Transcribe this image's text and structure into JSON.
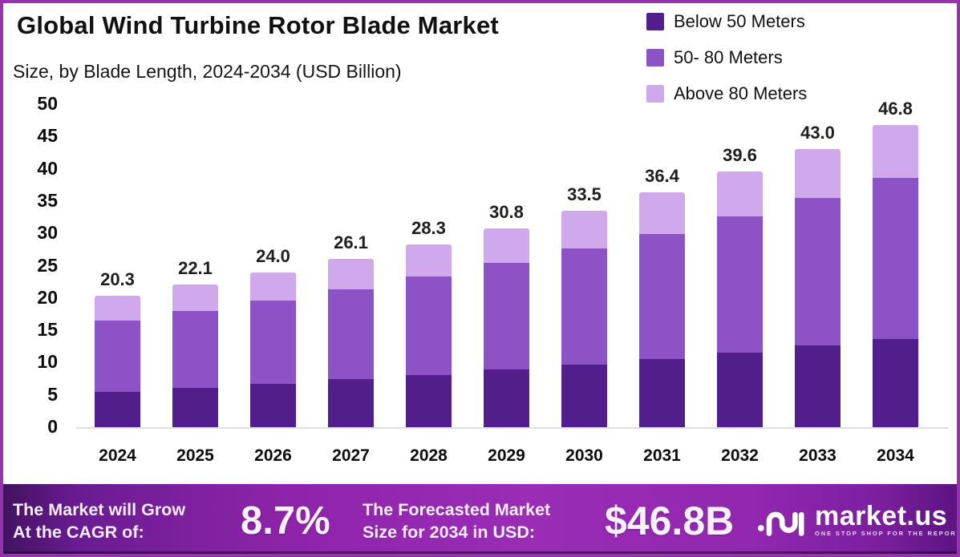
{
  "page": {
    "border_color": "#9632AA",
    "background": "#FFFFFF"
  },
  "header": {
    "title": "Global Wind Turbine Rotor Blade Market",
    "subtitle": "Size, by Blade Length, 2024-2034 (USD Billion)"
  },
  "legend": [
    {
      "label": "Below 50 Meters",
      "color": "#521E8C"
    },
    {
      "label": "50- 80 Meters",
      "color": "#8C52C6"
    },
    {
      "label": "Above 80 Meters",
      "color": "#CFA9EC"
    }
  ],
  "chart_data": {
    "type": "bar",
    "subtype": "stacked-vertical",
    "title": "Global Wind Turbine Rotor Blade Market Size, by Blade Length, 2024-2034 (USD Billion)",
    "categories": [
      "2024",
      "2025",
      "2026",
      "2027",
      "2028",
      "2029",
      "2030",
      "2031",
      "2032",
      "2033",
      "2034"
    ],
    "series": [
      {
        "name": "Below 50 Meters",
        "color": "#521E8C",
        "values": [
          5.5,
          6.1,
          6.7,
          7.4,
          8.1,
          8.9,
          9.7,
          10.6,
          11.5,
          12.6,
          13.7
        ]
      },
      {
        "name": "50- 80 Meters",
        "color": "#8C52C6",
        "values": [
          11.0,
          11.9,
          12.9,
          14.0,
          15.2,
          16.5,
          18.0,
          19.3,
          21.1,
          22.9,
          24.9
        ]
      },
      {
        "name": "Above 80 Meters",
        "color": "#CFA9EC",
        "values": [
          3.8,
          4.1,
          4.4,
          4.7,
          5.0,
          5.4,
          5.8,
          6.5,
          7.0,
          7.5,
          8.2
        ]
      }
    ],
    "totals": [
      20.3,
      22.1,
      24.0,
      26.1,
      28.3,
      30.8,
      33.5,
      36.4,
      39.6,
      43.0,
      46.8
    ],
    "total_labels": [
      "20.3",
      "22.1",
      "24.0",
      "26.1",
      "28.3",
      "30.8",
      "33.5",
      "36.4",
      "39.6",
      "43.0",
      "46.8"
    ],
    "y_axis": {
      "min": 0,
      "max": 50,
      "step": 5,
      "tick_labels": [
        "0",
        "5",
        "10",
        "15",
        "20",
        "25",
        "30",
        "35",
        "40",
        "45",
        "50"
      ]
    },
    "gridlines": false,
    "legend_position": "top-right",
    "value_labels_position": "above-bar-total"
  },
  "footer": {
    "cagr_line1": "The Market will Grow",
    "cagr_line2": "At the CAGR of:",
    "cagr_value": "8.7%",
    "forecast_line1": "The Forecasted Market",
    "forecast_line2": "Size for 2034 in USD:",
    "forecast_value": "$46.8B",
    "brand_name": "market.us",
    "brand_tagline": "ONE STOP SHOP FOR THE REPORTS"
  }
}
